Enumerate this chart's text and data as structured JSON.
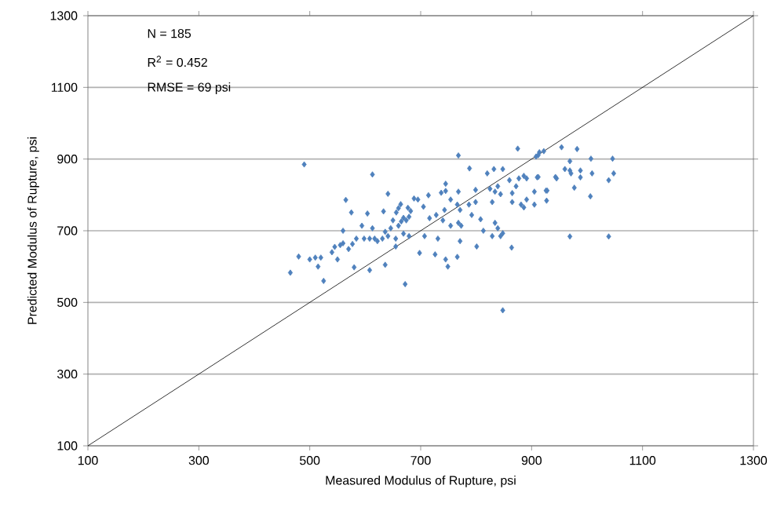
{
  "chart_data": {
    "type": "scatter",
    "xlabel": "Measured Modulus of Rupture, psi",
    "ylabel": "Predicted Modulus of Rupture, psi",
    "annotations": [
      "N = 185",
      "R$^{2}$ =  0.452",
      "RMSE = 69 psi"
    ],
    "xlim": [
      100,
      1300
    ],
    "ylim": [
      100,
      1300
    ],
    "xticks": [
      100,
      300,
      500,
      700,
      900,
      1100,
      1300
    ],
    "yticks": [
      100,
      300,
      500,
      700,
      900,
      1100,
      1300
    ],
    "grid": "y",
    "marker": "diamond",
    "series": [
      {
        "color": "#4f81bd",
        "x": [
          465,
          480,
          490,
          500,
          510,
          515,
          520,
          525,
          540,
          545,
          550,
          555,
          560,
          560,
          768,
          875,
          908,
          914,
          922,
          788,
          613,
          565,
          575,
          641,
          604,
          633,
          664,
          660,
          656,
          688,
          695,
          677,
          682,
          669,
          674,
          679,
          665,
          660,
          650,
          646,
          705,
          714,
          716,
          728,
          737,
          745,
          745,
          743,
          754,
          768,
          766,
          771,
          754,
          740,
          594,
          598,
          584,
          577,
          613,
          617,
          622,
          608,
          631,
          636,
          641,
          655,
          570,
          580,
          608,
          636,
          655,
          669,
          679,
          707,
          698,
          731,
          726,
          745,
          749,
          766,
          672,
          771,
          773,
          768,
          787,
          792,
          799,
          799,
          801,
          808,
          813,
          820,
          832,
          848,
          825,
          834,
          844,
          839,
          829,
          834,
          839,
          844,
          829,
          848,
          864,
          848,
          860,
          865,
          872,
          877,
          886,
          891,
          891,
          886,
          881,
          865,
          905,
          910,
          928,
          905,
          912,
          954,
          982,
          1046,
          1007,
          969,
          912,
          943,
          945,
          960,
          969,
          971,
          988,
          988,
          1009,
          1048,
          1039,
          926,
          927,
          977,
          1006,
          969,
          1039
        ],
        "values": [
          583,
          628,
          885,
          620,
          625,
          600,
          625,
          560,
          640,
          655,
          620,
          660,
          700,
          665,
          910,
          929,
          907,
          919,
          922,
          874,
          857,
          786,
          751,
          803,
          748,
          754,
          774,
          763,
          751,
          790,
          787,
          764,
          755,
          736,
          729,
          739,
          726,
          714,
          729,
          707,
          767,
          799,
          735,
          744,
          806,
          811,
          831,
          758,
          787,
          809,
          773,
          758,
          714,
          729,
          714,
          678,
          678,
          663,
          707,
          678,
          671,
          678,
          678,
          697,
          685,
          678,
          649,
          598,
          590,
          605,
          656,
          692,
          685,
          685,
          638,
          678,
          634,
          620,
          600,
          627,
          551,
          671,
          714,
          722,
          773,
          744,
          814,
          780,
          656,
          732,
          700,
          860,
          872,
          872,
          817,
          809,
          802,
          824,
          780,
          722,
          707,
          685,
          685,
          693,
          653,
          478,
          841,
          805,
          824,
          846,
          853,
          846,
          787,
          765,
          773,
          780,
          773,
          849,
          812,
          809,
          911,
          933,
          928,
          901,
          901,
          894,
          850,
          850,
          846,
          872,
          868,
          860,
          868,
          849,
          860,
          860,
          841,
          812,
          784,
          820,
          796,
          684,
          684
        ]
      },
      {
        "type": "line",
        "color": "#000000",
        "marker": "none",
        "x": [
          100,
          1300
        ],
        "values": [
          100,
          1300
        ]
      }
    ]
  }
}
